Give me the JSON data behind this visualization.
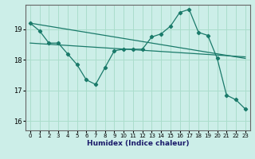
{
  "xlabel": "Humidex (Indice chaleur)",
  "ylabel": "",
  "bg_color": "#cceee8",
  "grid_color": "#aaddcc",
  "line_color": "#1a7a6a",
  "x_ticks": [
    0,
    1,
    2,
    3,
    4,
    5,
    6,
    7,
    8,
    9,
    10,
    11,
    12,
    13,
    14,
    15,
    16,
    17,
    18,
    19,
    20,
    21,
    22,
    23
  ],
  "y_ticks": [
    16,
    17,
    18,
    19
  ],
  "ylim": [
    15.7,
    19.8
  ],
  "xlim": [
    -0.5,
    23.5
  ],
  "series1_x": [
    0,
    1,
    2,
    3,
    4,
    5,
    6,
    7,
    8,
    9,
    10,
    11,
    12,
    13,
    14,
    15,
    16,
    17,
    18,
    19,
    20,
    21,
    22,
    23
  ],
  "series1_y": [
    19.2,
    18.95,
    18.55,
    18.55,
    18.2,
    17.85,
    17.35,
    17.2,
    17.75,
    18.3,
    18.35,
    18.35,
    18.35,
    18.75,
    18.85,
    19.1,
    19.55,
    19.65,
    18.9,
    18.8,
    18.05,
    16.85,
    16.7,
    16.4
  ],
  "series2_x": [
    0,
    23
  ],
  "series2_y": [
    19.2,
    18.05
  ],
  "series3_x": [
    0,
    23
  ],
  "series3_y": [
    18.55,
    18.1
  ]
}
